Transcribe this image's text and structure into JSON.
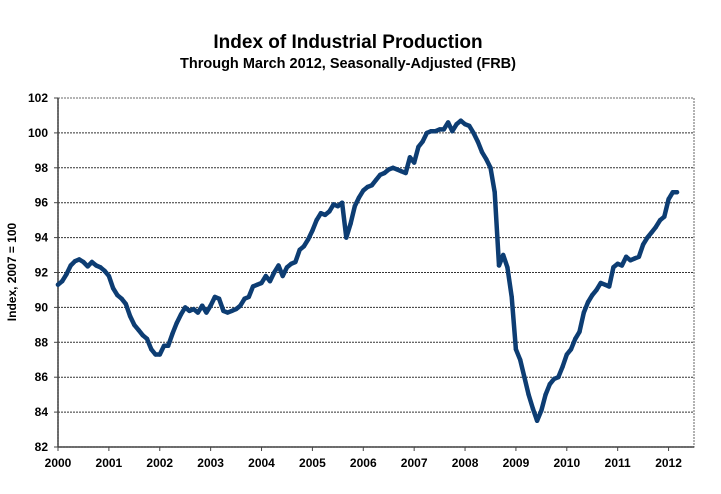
{
  "chart_data": {
    "type": "line",
    "title": "Index of Industrial Production",
    "subtitle": "Through March 2012, Seasonally-Adjusted (FRB)",
    "xlabel": "",
    "ylabel": "Index, 2007 = 100",
    "xlim": [
      2000,
      2012.5
    ],
    "ylim": [
      82,
      102
    ],
    "x_ticks": [
      2000,
      2001,
      2002,
      2003,
      2004,
      2005,
      2006,
      2007,
      2008,
      2009,
      2010,
      2011,
      2012
    ],
    "x_tick_labels": [
      "2000",
      "2001",
      "2002",
      "2003",
      "2004",
      "2005",
      "2006",
      "2007",
      "2008",
      "2009",
      "2010",
      "2011",
      "2012"
    ],
    "y_ticks": [
      82,
      84,
      86,
      88,
      90,
      92,
      94,
      96,
      98,
      100,
      102
    ],
    "y_tick_labels": [
      "82",
      "84",
      "86",
      "88",
      "90",
      "92",
      "94",
      "96",
      "98",
      "100",
      "102"
    ],
    "grid": "horizontal",
    "legend": "none",
    "series": [
      {
        "name": "Industrial Production Index",
        "color": "#0d3d73",
        "start": "2000-01",
        "frequency": "monthly",
        "values": [
          91.3,
          91.5,
          91.9,
          92.4,
          92.65,
          92.75,
          92.6,
          92.35,
          92.6,
          92.4,
          92.3,
          92.1,
          91.8,
          91.1,
          90.7,
          90.5,
          90.2,
          89.5,
          89.0,
          88.7,
          88.4,
          88.2,
          87.6,
          87.3,
          87.3,
          87.8,
          87.8,
          88.5,
          89.1,
          89.6,
          90.0,
          89.8,
          89.9,
          89.7,
          90.1,
          89.7,
          90.1,
          90.6,
          90.5,
          89.8,
          89.7,
          89.8,
          89.9,
          90.1,
          90.5,
          90.6,
          91.2,
          91.3,
          91.4,
          91.8,
          91.5,
          92.0,
          92.4,
          91.8,
          92.3,
          92.5,
          92.6,
          93.3,
          93.5,
          93.9,
          94.4,
          95.0,
          95.4,
          95.3,
          95.5,
          95.9,
          95.8,
          96.0,
          94.0,
          94.8,
          95.8,
          96.3,
          96.7,
          96.9,
          97.0,
          97.3,
          97.6,
          97.7,
          97.9,
          98.0,
          97.9,
          97.8,
          97.7,
          98.6,
          98.3,
          99.2,
          99.5,
          100.0,
          100.1,
          100.1,
          100.2,
          100.2,
          100.6,
          100.1,
          100.5,
          100.7,
          100.5,
          100.4,
          100.0,
          99.5,
          98.9,
          98.5,
          98.0,
          96.6,
          92.4,
          93.0,
          92.3,
          90.6,
          87.6,
          87.0,
          86.0,
          85.0,
          84.2,
          83.5,
          84.1,
          85.0,
          85.6,
          85.9,
          86.0,
          86.6,
          87.3,
          87.6,
          88.2,
          88.6,
          89.7,
          90.3,
          90.7,
          91.0,
          91.4,
          91.3,
          91.2,
          92.3,
          92.5,
          92.4,
          92.9,
          92.7,
          92.8,
          92.9,
          93.6,
          94.0,
          94.3,
          94.6,
          95.0,
          95.2,
          96.2,
          96.6,
          96.6
        ]
      }
    ]
  }
}
